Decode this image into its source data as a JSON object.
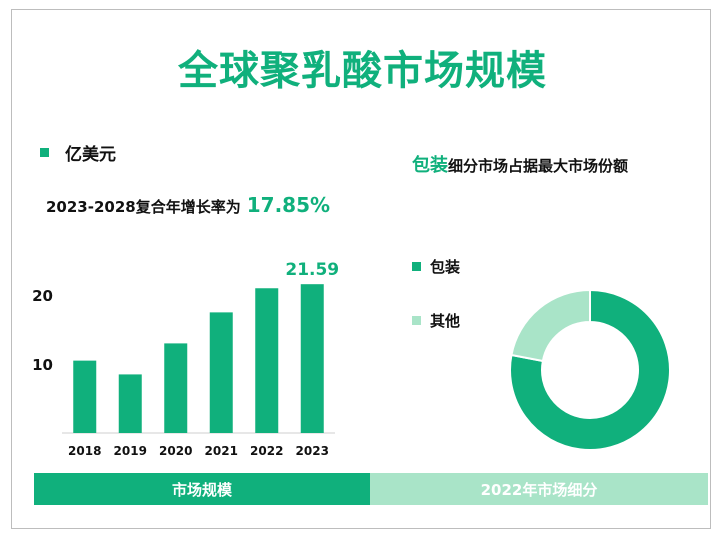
{
  "title": "全球聚乳酸市场规模",
  "unit_label": "亿美元",
  "cagr_label": "2023-2028复合年增长率为",
  "cagr_value": "17.85%",
  "colors": {
    "primary": "#10b07c",
    "secondary": "#a9e4c8"
  },
  "chart_data": [
    {
      "type": "bar",
      "categories": [
        "2018",
        "2019",
        "2020",
        "2021",
        "2022",
        "2023"
      ],
      "values": [
        10.5,
        8.5,
        13.0,
        17.5,
        21.0,
        21.59
      ],
      "ylim": [
        0,
        28
      ],
      "yticks": [
        10,
        20
      ],
      "data_labels": [
        {
          "index": 5,
          "text": "21.59"
        }
      ],
      "xlabel": "",
      "ylabel": ""
    },
    {
      "type": "pie",
      "donut": true,
      "labels": [
        "包装",
        "其他"
      ],
      "values": [
        78,
        22
      ],
      "colors": [
        "#10b07c",
        "#a9e4c8"
      ]
    }
  ],
  "segment_heading": {
    "accent": "包装",
    "rest": "细分市场占据最大市场份额"
  },
  "footer": {
    "left": "市场规模",
    "right": "2022年市场细分"
  }
}
